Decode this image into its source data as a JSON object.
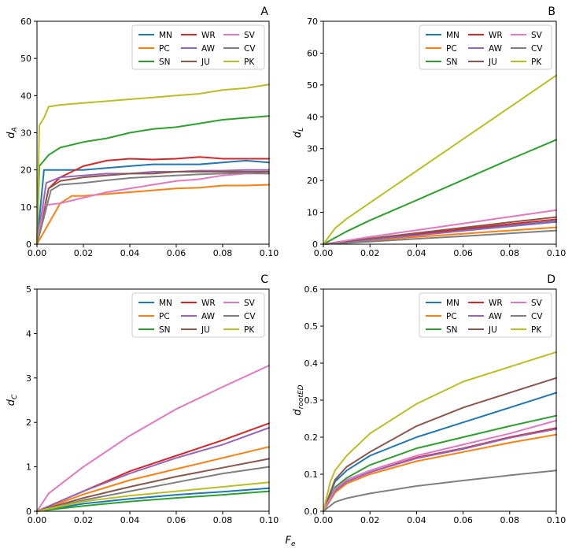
{
  "figure": {
    "shared_xlabel": "F",
    "shared_xlabel_sub": "e"
  },
  "series_colors": {
    "MN": "#1f77b4",
    "PC": "#ff7f0e",
    "SN": "#2ca02c",
    "WR": "#d62728",
    "AW": "#9467bd",
    "JU": "#8c564b",
    "SV": "#e377c2",
    "CV": "#7f7f7f",
    "PK": "#bcbd22"
  },
  "chart_data": [
    {
      "type": "line",
      "letter": "A",
      "ylabel": "d",
      "ylabel_sub": "A",
      "xlim": [
        0,
        0.1
      ],
      "ylim": [
        0,
        60
      ],
      "xticks": [
        0,
        0.02,
        0.04,
        0.06,
        0.08,
        0.1
      ],
      "xtick_labels": [
        "0.00",
        "0.02",
        "0.04",
        "0.06",
        "0.08",
        "0.10"
      ],
      "yticks": [
        0,
        10,
        20,
        30,
        40,
        50,
        60
      ],
      "ytick_labels": [
        "0",
        "10",
        "20",
        "30",
        "40",
        "50",
        "60"
      ],
      "legend": {
        "placement": "top-right",
        "order": [
          "MN",
          "WR",
          "SV",
          "PC",
          "AW",
          "CV",
          "SN",
          "JU",
          "PK"
        ]
      },
      "series": [
        {
          "name": "MN",
          "x": [
            0,
            0.003,
            0.01,
            0.02,
            0.03,
            0.04,
            0.05,
            0.06,
            0.07,
            0.08,
            0.09,
            0.1
          ],
          "values": [
            0,
            20,
            20,
            20,
            20.5,
            21,
            21.5,
            21.5,
            21.5,
            22,
            22.5,
            22
          ]
        },
        {
          "name": "PC",
          "x": [
            0,
            0.01,
            0.015,
            0.02,
            0.03,
            0.04,
            0.05,
            0.06,
            0.07,
            0.08,
            0.09,
            0.1
          ],
          "values": [
            0,
            11,
            13,
            13,
            13.5,
            14,
            14.5,
            15,
            15.2,
            15.8,
            15.8,
            16
          ]
        },
        {
          "name": "SN",
          "x": [
            0,
            0.001,
            0.005,
            0.01,
            0.02,
            0.03,
            0.04,
            0.05,
            0.06,
            0.07,
            0.08,
            0.09,
            0.1
          ],
          "values": [
            0,
            21,
            24,
            26,
            27.5,
            28.5,
            30,
            31,
            31.5,
            32.5,
            33.5,
            34,
            34.5
          ]
        },
        {
          "name": "WR",
          "x": [
            0,
            0.005,
            0.01,
            0.02,
            0.03,
            0.04,
            0.05,
            0.06,
            0.07,
            0.08,
            0.09,
            0.1
          ],
          "values": [
            0,
            15,
            18,
            21,
            22.5,
            23,
            22.8,
            23,
            23.5,
            23,
            23,
            23
          ]
        },
        {
          "name": "AW",
          "x": [
            0,
            0.004,
            0.01,
            0.02,
            0.03,
            0.04,
            0.05,
            0.06,
            0.07,
            0.08,
            0.09,
            0.1
          ],
          "values": [
            0,
            16.5,
            18,
            18.5,
            19,
            19,
            19.5,
            19.5,
            19.8,
            19.8,
            20,
            20
          ]
        },
        {
          "name": "JU",
          "x": [
            0,
            0.005,
            0.01,
            0.02,
            0.03,
            0.04,
            0.05,
            0.06,
            0.07,
            0.08,
            0.09,
            0.1
          ],
          "values": [
            0,
            15,
            17,
            18,
            18.5,
            19,
            19,
            19.5,
            19.5,
            19.5,
            19.5,
            19.5
          ]
        },
        {
          "name": "SV",
          "x": [
            0,
            0.003,
            0.01,
            0.02,
            0.03,
            0.04,
            0.05,
            0.06,
            0.07,
            0.08,
            0.09,
            0.1
          ],
          "values": [
            0,
            10.5,
            11,
            12.5,
            14,
            15,
            16,
            17,
            17.5,
            18.5,
            19,
            19
          ]
        },
        {
          "name": "CV",
          "x": [
            0,
            0.006,
            0.01,
            0.02,
            0.03,
            0.04,
            0.05,
            0.06,
            0.07,
            0.08,
            0.09,
            0.1
          ],
          "values": [
            0,
            14.5,
            16,
            16.5,
            17.2,
            17.8,
            18.2,
            18.5,
            18.8,
            19,
            19.2,
            19
          ]
        },
        {
          "name": "PK",
          "x": [
            0,
            0.001,
            0.003,
            0.005,
            0.01,
            0.02,
            0.03,
            0.04,
            0.05,
            0.06,
            0.07,
            0.08,
            0.09,
            0.1
          ],
          "values": [
            0,
            32,
            34,
            37,
            37.5,
            38,
            38.5,
            39,
            39.5,
            40,
            40.5,
            41.5,
            42,
            43
          ]
        }
      ]
    },
    {
      "type": "line",
      "letter": "B",
      "ylabel": "d",
      "ylabel_sub": "L",
      "xlim": [
        0,
        0.1
      ],
      "ylim": [
        0,
        70
      ],
      "xticks": [
        0,
        0.02,
        0.04,
        0.06,
        0.08,
        0.1
      ],
      "xtick_labels": [
        "0.00",
        "0.02",
        "0.04",
        "0.06",
        "0.08",
        "0.10"
      ],
      "yticks": [
        0,
        10,
        20,
        30,
        40,
        50,
        60,
        70
      ],
      "ytick_labels": [
        "0",
        "10",
        "20",
        "30",
        "40",
        "50",
        "60",
        "70"
      ],
      "legend": {
        "placement": "top-right",
        "order": [
          "MN",
          "WR",
          "SV",
          "PC",
          "AW",
          "CV",
          "SN",
          "JU",
          "PK"
        ]
      },
      "series": [
        {
          "name": "MN",
          "x": [
            0,
            0.02,
            0.04,
            0.06,
            0.08,
            0.1
          ],
          "values": [
            0,
            1.5,
            3,
            4.5,
            5.8,
            7.2
          ]
        },
        {
          "name": "PC",
          "x": [
            0,
            0.02,
            0.04,
            0.06,
            0.08,
            0.1
          ],
          "values": [
            0,
            1.2,
            2.3,
            3.3,
            4.3,
            5.3
          ]
        },
        {
          "name": "SN",
          "x": [
            0,
            0.01,
            0.02,
            0.04,
            0.06,
            0.08,
            0.1
          ],
          "values": [
            0,
            4,
            7.5,
            13.8,
            20.2,
            26.6,
            32.8
          ]
        },
        {
          "name": "WR",
          "x": [
            0,
            0.02,
            0.04,
            0.06,
            0.08,
            0.1
          ],
          "values": [
            0,
            1.6,
            3.2,
            4.8,
            6.3,
            7.8
          ]
        },
        {
          "name": "AW",
          "x": [
            0,
            0.02,
            0.04,
            0.06,
            0.08,
            0.1
          ],
          "values": [
            0,
            1.4,
            2.8,
            4.2,
            5.6,
            7
          ]
        },
        {
          "name": "JU",
          "x": [
            0,
            0.02,
            0.04,
            0.06,
            0.08,
            0.1
          ],
          "values": [
            0,
            1.8,
            3.5,
            5.2,
            6.9,
            8.5
          ]
        },
        {
          "name": "SV",
          "x": [
            0,
            0.02,
            0.04,
            0.06,
            0.08,
            0.1
          ],
          "values": [
            0,
            2.3,
            4.4,
            6.5,
            8.6,
            10.7
          ]
        },
        {
          "name": "CV",
          "x": [
            0,
            0.02,
            0.04,
            0.06,
            0.08,
            0.1
          ],
          "values": [
            0,
            0.8,
            1.7,
            2.5,
            3.4,
            4.3
          ]
        },
        {
          "name": "PK",
          "x": [
            0,
            0.005,
            0.01,
            0.02,
            0.04,
            0.06,
            0.08,
            0.1
          ],
          "values": [
            0,
            5,
            8,
            13,
            23,
            33,
            43,
            53
          ]
        }
      ]
    },
    {
      "type": "line",
      "letter": "C",
      "ylabel": "d",
      "ylabel_sub": "C",
      "xlim": [
        0,
        0.1
      ],
      "ylim": [
        0,
        5
      ],
      "xticks": [
        0,
        0.02,
        0.04,
        0.06,
        0.08,
        0.1
      ],
      "xtick_labels": [
        "0.00",
        "0.02",
        "0.04",
        "0.06",
        "0.08",
        "0.10"
      ],
      "yticks": [
        0,
        1,
        2,
        3,
        4,
        5
      ],
      "ytick_labels": [
        "0",
        "1",
        "2",
        "3",
        "4",
        "5"
      ],
      "legend": {
        "placement": "top-right",
        "order": [
          "MN",
          "WR",
          "SV",
          "PC",
          "AW",
          "CV",
          "SN",
          "JU",
          "PK"
        ]
      },
      "series": [
        {
          "name": "MN",
          "x": [
            0,
            0.02,
            0.04,
            0.06,
            0.08,
            0.1
          ],
          "values": [
            0,
            0.17,
            0.28,
            0.37,
            0.44,
            0.52
          ]
        },
        {
          "name": "PC",
          "x": [
            0,
            0.02,
            0.04,
            0.06,
            0.08,
            0.1
          ],
          "values": [
            0,
            0.38,
            0.7,
            0.95,
            1.2,
            1.45
          ]
        },
        {
          "name": "SN",
          "x": [
            0,
            0.02,
            0.04,
            0.06,
            0.08,
            0.1
          ],
          "values": [
            0,
            0.12,
            0.22,
            0.3,
            0.37,
            0.45
          ]
        },
        {
          "name": "WR",
          "x": [
            0,
            0.02,
            0.04,
            0.06,
            0.08,
            0.1
          ],
          "values": [
            0,
            0.45,
            0.9,
            1.25,
            1.6,
            1.98
          ]
        },
        {
          "name": "AW",
          "x": [
            0,
            0.02,
            0.04,
            0.06,
            0.08,
            0.1
          ],
          "values": [
            0,
            0.45,
            0.85,
            1.2,
            1.5,
            1.88
          ]
        },
        {
          "name": "JU",
          "x": [
            0,
            0.02,
            0.04,
            0.06,
            0.08,
            0.1
          ],
          "values": [
            0,
            0.3,
            0.55,
            0.78,
            0.98,
            1.18
          ]
        },
        {
          "name": "SV",
          "x": [
            0,
            0.005,
            0.01,
            0.02,
            0.04,
            0.06,
            0.08,
            0.1
          ],
          "values": [
            0,
            0.4,
            0.6,
            1.0,
            1.7,
            2.3,
            2.8,
            3.28
          ]
        },
        {
          "name": "CV",
          "x": [
            0,
            0.02,
            0.04,
            0.06,
            0.08,
            0.1
          ],
          "values": [
            0,
            0.25,
            0.45,
            0.65,
            0.85,
            1.0
          ]
        },
        {
          "name": "PK",
          "x": [
            0,
            0.02,
            0.04,
            0.06,
            0.08,
            0.1
          ],
          "values": [
            0,
            0.22,
            0.35,
            0.45,
            0.55,
            0.65
          ]
        }
      ]
    },
    {
      "type": "line",
      "letter": "D",
      "ylabel": "d",
      "ylabel_sub": "rootED",
      "xlim": [
        0,
        0.1
      ],
      "ylim": [
        0,
        0.6
      ],
      "xticks": [
        0,
        0.02,
        0.04,
        0.06,
        0.08,
        0.1
      ],
      "xtick_labels": [
        "0.00",
        "0.02",
        "0.04",
        "0.06",
        "0.08",
        "0.10"
      ],
      "yticks": [
        0,
        0.1,
        0.2,
        0.3,
        0.4,
        0.5,
        0.6
      ],
      "ytick_labels": [
        "0.0",
        "0.1",
        "0.2",
        "0.3",
        "0.4",
        "0.5",
        "0.6"
      ],
      "legend": {
        "placement": "top-right",
        "order": [
          "MN",
          "WR",
          "SV",
          "PC",
          "AW",
          "CV",
          "SN",
          "JU",
          "PK"
        ]
      },
      "series": [
        {
          "name": "MN",
          "x": [
            0,
            0.005,
            0.01,
            0.02,
            0.04,
            0.06,
            0.08,
            0.1
          ],
          "values": [
            0,
            0.08,
            0.11,
            0.15,
            0.2,
            0.24,
            0.28,
            0.32
          ]
        },
        {
          "name": "PC",
          "x": [
            0,
            0.005,
            0.01,
            0.02,
            0.04,
            0.06,
            0.08,
            0.1
          ],
          "values": [
            0,
            0.05,
            0.075,
            0.1,
            0.135,
            0.16,
            0.185,
            0.207
          ]
        },
        {
          "name": "SN",
          "x": [
            0,
            0.005,
            0.01,
            0.02,
            0.04,
            0.06,
            0.08,
            0.1
          ],
          "values": [
            0,
            0.065,
            0.09,
            0.125,
            0.17,
            0.2,
            0.23,
            0.258
          ]
        },
        {
          "name": "WR",
          "x": [
            0,
            0.005,
            0.01,
            0.02,
            0.04,
            0.06,
            0.08,
            0.1
          ],
          "values": [
            0,
            0.055,
            0.08,
            0.105,
            0.145,
            0.17,
            0.2,
            0.225
          ]
        },
        {
          "name": "AW",
          "x": [
            0,
            0.005,
            0.01,
            0.02,
            0.04,
            0.06,
            0.08,
            0.1
          ],
          "values": [
            0,
            0.055,
            0.08,
            0.105,
            0.143,
            0.168,
            0.198,
            0.222
          ]
        },
        {
          "name": "JU",
          "x": [
            0,
            0.005,
            0.01,
            0.02,
            0.04,
            0.06,
            0.08,
            0.1
          ],
          "values": [
            0,
            0.085,
            0.12,
            0.16,
            0.23,
            0.28,
            0.32,
            0.36
          ]
        },
        {
          "name": "SV",
          "x": [
            0,
            0.005,
            0.01,
            0.02,
            0.04,
            0.06,
            0.08,
            0.1
          ],
          "values": [
            0,
            0.06,
            0.085,
            0.11,
            0.15,
            0.18,
            0.21,
            0.245
          ]
        },
        {
          "name": "CV",
          "x": [
            0,
            0.005,
            0.01,
            0.02,
            0.04,
            0.06,
            0.08,
            0.1
          ],
          "values": [
            0,
            0.025,
            0.035,
            0.048,
            0.068,
            0.083,
            0.097,
            0.11
          ]
        },
        {
          "name": "PK",
          "x": [
            0,
            0.003,
            0.005,
            0.01,
            0.02,
            0.04,
            0.06,
            0.08,
            0.1
          ],
          "values": [
            0,
            0.08,
            0.11,
            0.15,
            0.21,
            0.29,
            0.35,
            0.39,
            0.43
          ]
        }
      ]
    }
  ]
}
